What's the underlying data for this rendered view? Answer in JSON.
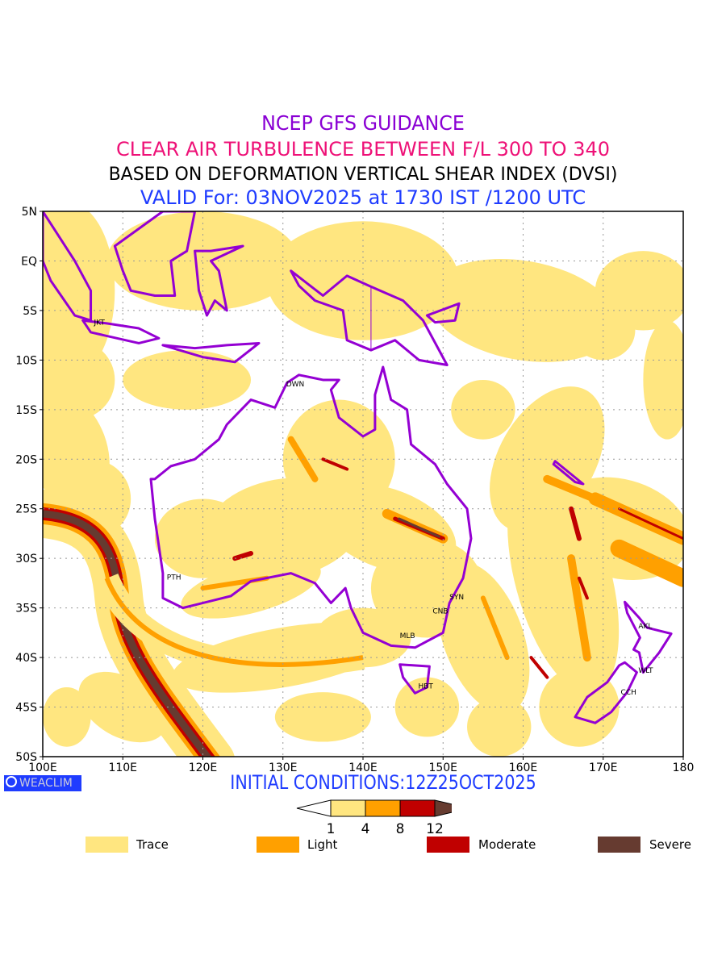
{
  "titles": {
    "line1": "NCEP GFS GUIDANCE",
    "line2": "CLEAR AIR TURBULENCE BETWEEN F/L 300 TO 340",
    "line3": "BASED ON DEFORMATION VERTICAL SHEAR INDEX (DVSI)",
    "line4": "VALID For: 03NOV2025 at 1730 IST /1200 UTC"
  },
  "map": {
    "lat_labels": [
      "5N",
      "EQ",
      "5S",
      "10S",
      "15S",
      "20S",
      "25S",
      "30S",
      "35S",
      "40S",
      "45S",
      "50S"
    ],
    "lon_labels": [
      "100E",
      "110E",
      "120E",
      "130E",
      "140E",
      "150E",
      "160E",
      "170E",
      "180"
    ],
    "cities": [
      {
        "code": "JKT",
        "lon": 106.8,
        "lat": -6.2
      },
      {
        "code": "DWN",
        "lon": 130.8,
        "lat": -12.4
      },
      {
        "code": "PTH",
        "lon": 115.9,
        "lat": -31.9
      },
      {
        "code": "MLB",
        "lon": 145,
        "lat": -37.8
      },
      {
        "code": "CNB",
        "lon": 149.1,
        "lat": -35.3
      },
      {
        "code": "SYN",
        "lon": 151.2,
        "lat": -33.9
      },
      {
        "code": "HBT",
        "lon": 147.3,
        "lat": -42.9
      },
      {
        "code": "AKL",
        "lon": 174.8,
        "lat": -36.8
      },
      {
        "code": "WLT",
        "lon": 174.8,
        "lat": -41.3
      },
      {
        "code": "CCH",
        "lon": 172.6,
        "lat": -43.5
      }
    ]
  },
  "colors": {
    "trace": "#ffe680",
    "light": "#ffa000",
    "moderate": "#c00000",
    "severe": "#663b30",
    "coast": "#9400d3"
  },
  "footer": {
    "brand": "WEACLIM",
    "initial": "INITIAL CONDITIONS:12Z25OCT2025"
  },
  "colorbar": {
    "ticks": [
      "1",
      "4",
      "8",
      "12"
    ]
  },
  "legend": [
    {
      "label": "Trace",
      "color": "#ffe680"
    },
    {
      "label": "Light",
      "color": "#ffa000"
    },
    {
      "label": "Moderate",
      "color": "#c00000"
    },
    {
      "label": "Severe",
      "color": "#663b30"
    }
  ]
}
